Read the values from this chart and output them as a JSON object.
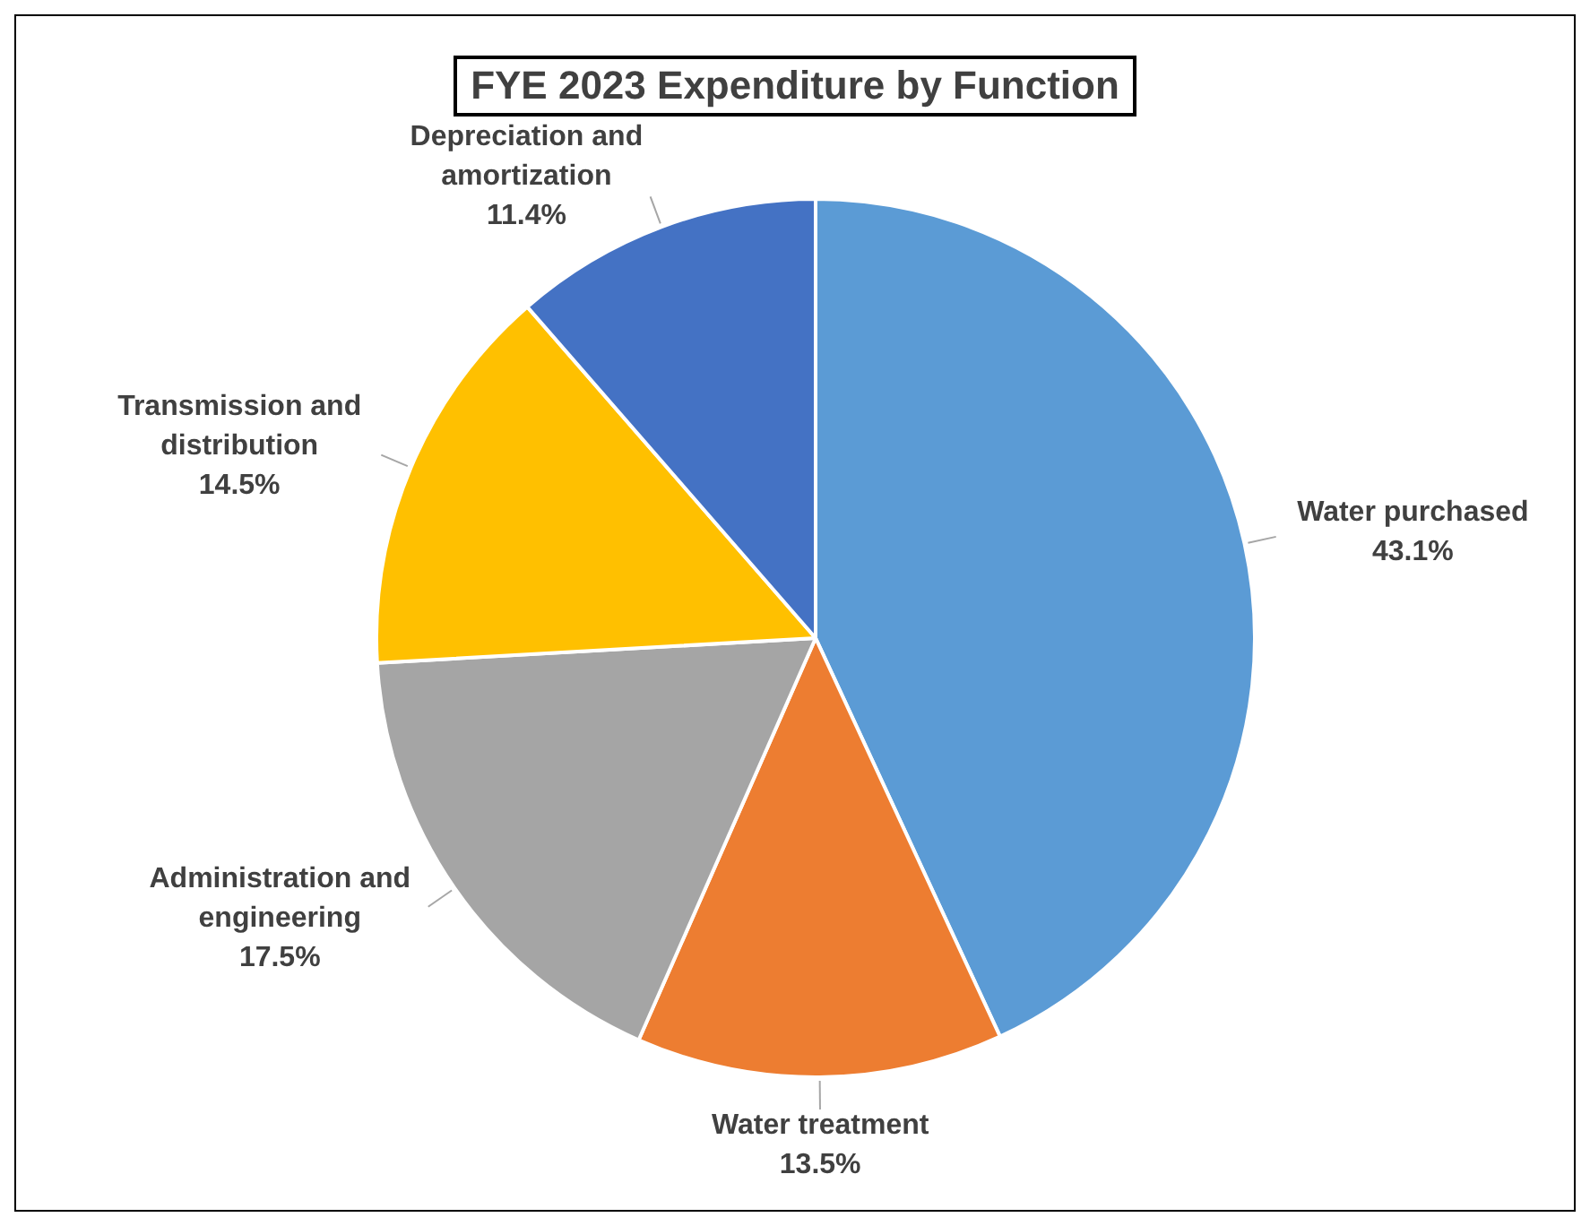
{
  "chart_data": {
    "type": "pie",
    "title": "FYE 2023 Expenditure by Function",
    "categories": [
      "Water purchased",
      "Water treatment",
      "Administration and engineering",
      "Transmission and distribution",
      "Depreciation and amortization"
    ],
    "values": [
      43.1,
      13.5,
      17.5,
      14.5,
      11.4
    ],
    "value_labels": [
      "43.1%",
      "13.5%",
      "17.5%",
      "14.5%",
      "11.4%"
    ],
    "colors": [
      "#5b9bd5",
      "#ed7d31",
      "#a5a5a5",
      "#ffc000",
      "#4472c4"
    ],
    "legend": false
  }
}
